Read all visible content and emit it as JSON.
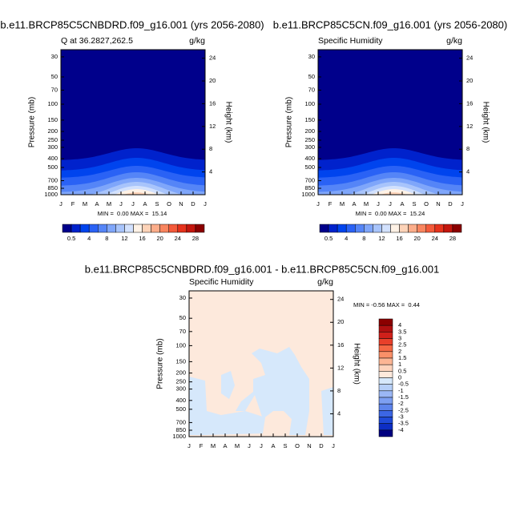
{
  "chart_data": [
    {
      "type": "contour",
      "title": "b.e11.BRCP85C5CNBDRD.f09_g16.001 (yrs 2056-2080)",
      "subtitle": "Q at 36.2827,262.5",
      "units": "g/kg",
      "ylabel": "Pressure (mb)",
      "y2label": "Height (km)",
      "ylog": true,
      "categories": [
        "J",
        "F",
        "M",
        "A",
        "M",
        "J",
        "J",
        "A",
        "S",
        "O",
        "N",
        "D",
        "J"
      ],
      "ylim": [
        1000,
        25
      ],
      "yticks": [
        30,
        50,
        70,
        100,
        150,
        200,
        250,
        300,
        400,
        500,
        700,
        850,
        1000
      ],
      "y2lim": [
        0,
        25.5
      ],
      "y2ticks": [
        4,
        8,
        12,
        16,
        20,
        24
      ],
      "stats": "MIN =  0.00 MAX =  15.14",
      "colorbar": {
        "orientation": "horizontal",
        "ticks": [
          0.5,
          4,
          8,
          12,
          16,
          20,
          24,
          28
        ],
        "colors": [
          "#00008b",
          "#0022cc",
          "#0044ee",
          "#2a62f5",
          "#5585f7",
          "#7fa6fa",
          "#a8c4fb",
          "#d2e1fd",
          "#fff2e6",
          "#fdd3b8",
          "#fcad8a",
          "#f9855f",
          "#f45a3a",
          "#e6321c",
          "#c4160d",
          "#8b0000"
        ]
      }
    },
    {
      "type": "contour",
      "title": "b.e11.BRCP85C5CN.f09_g16.001 (yrs 2056-2080)",
      "subtitle": "Specific Humidity",
      "units": "g/kg",
      "ylabel": "Pressure (mb)",
      "y2label": "Height (km)",
      "ylog": true,
      "categories": [
        "J",
        "F",
        "M",
        "A",
        "M",
        "J",
        "J",
        "A",
        "S",
        "O",
        "N",
        "D",
        "J"
      ],
      "ylim": [
        1000,
        25
      ],
      "yticks": [
        30,
        50,
        70,
        100,
        150,
        200,
        250,
        300,
        400,
        500,
        700,
        850,
        1000
      ],
      "y2lim": [
        0,
        25.5
      ],
      "y2ticks": [
        4,
        8,
        12,
        16,
        20,
        24
      ],
      "stats": "MIN =  0.00 MAX =  15.24",
      "colorbar": {
        "orientation": "horizontal",
        "ticks": [
          0.5,
          4,
          8,
          12,
          16,
          20,
          24,
          28
        ],
        "colors": [
          "#00008b",
          "#0022cc",
          "#0044ee",
          "#2a62f5",
          "#5585f7",
          "#7fa6fa",
          "#a8c4fb",
          "#d2e1fd",
          "#fff2e6",
          "#fdd3b8",
          "#fcad8a",
          "#f9855f",
          "#f45a3a",
          "#e6321c",
          "#c4160d",
          "#8b0000"
        ]
      }
    },
    {
      "type": "contour-diff",
      "title": "b.e11.BRCP85C5CNBDRD.f09_g16.001 - b.e11.BRCP85C5CN.f09_g16.001",
      "subtitle": "Specific Humidity",
      "units": "g/kg",
      "ylabel": "Pressure (mb)",
      "y2label": "Height (km)",
      "ylog": true,
      "categories": [
        "J",
        "F",
        "M",
        "A",
        "M",
        "J",
        "J",
        "A",
        "S",
        "O",
        "N",
        "D",
        "J"
      ],
      "ylim": [
        1000,
        25
      ],
      "yticks": [
        30,
        50,
        70,
        100,
        150,
        200,
        250,
        300,
        400,
        500,
        700,
        850,
        1000
      ],
      "y2lim": [
        0,
        25.5
      ],
      "y2ticks": [
        4,
        8,
        12,
        16,
        20,
        24
      ],
      "stats": "MIN = -0.56 MAX =  0.44",
      "colorbar": {
        "orientation": "vertical",
        "ticks": [
          4,
          3.5,
          3,
          2.5,
          2,
          1.5,
          1,
          0.5,
          0,
          -0.5,
          -1,
          -1.5,
          -2,
          -2.5,
          -3,
          -3.5,
          -4
        ],
        "colors": [
          "#8b0000",
          "#b01010",
          "#d0201a",
          "#e8402a",
          "#f56844",
          "#fa9068",
          "#fcb594",
          "#fdd3bc",
          "#fde9dc",
          "#d6e8fb",
          "#b6cff8",
          "#9bb7f5",
          "#7d9ff2",
          "#5d84ec",
          "#3c66e4",
          "#1f4ad8",
          "#0d2ec4",
          "#000080"
        ]
      }
    }
  ]
}
